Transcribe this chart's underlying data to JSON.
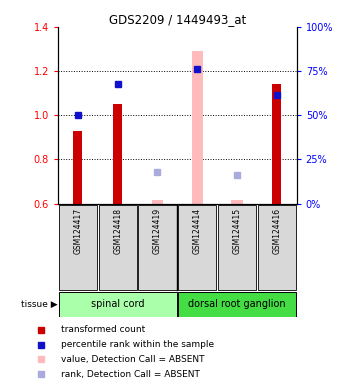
{
  "title": "GDS2209 / 1449493_at",
  "samples": [
    "GSM124417",
    "GSM124418",
    "GSM124419",
    "GSM124414",
    "GSM124415",
    "GSM124416"
  ],
  "x_positions": [
    0,
    1,
    2,
    3,
    4,
    5
  ],
  "red_bars": [
    0.93,
    1.05,
    null,
    null,
    null,
    1.14
  ],
  "blue_squares": [
    1.0,
    1.14,
    null,
    1.21,
    null,
    1.09
  ],
  "pink_bars": [
    null,
    null,
    0.615,
    1.29,
    0.615,
    null
  ],
  "lavender_squares": [
    null,
    null,
    0.745,
    null,
    0.73,
    null
  ],
  "ylim": [
    0.6,
    1.4
  ],
  "yticks_left": [
    0.6,
    0.8,
    1.0,
    1.2,
    1.4
  ],
  "yticks_right": [
    0,
    25,
    50,
    75,
    100
  ],
  "tissue_groups": [
    {
      "label": "spinal cord",
      "spans": [
        0,
        1,
        2
      ],
      "color": "#aaffaa"
    },
    {
      "label": "dorsal root ganglion",
      "spans": [
        3,
        4,
        5
      ],
      "color": "#44dd44"
    }
  ],
  "bar_width": 0.22,
  "pink_bar_width": 0.28,
  "red_color": "#cc0000",
  "blue_color": "#1111cc",
  "pink_color": "#ffbbbb",
  "lavender_color": "#aaaadd",
  "sample_box_color": "#d8d8d8",
  "legend_items": [
    {
      "color": "#cc0000",
      "label": "transformed count"
    },
    {
      "color": "#1111cc",
      "label": "percentile rank within the sample"
    },
    {
      "color": "#ffbbbb",
      "label": "value, Detection Call = ABSENT"
    },
    {
      "color": "#aaaadd",
      "label": "rank, Detection Call = ABSENT"
    }
  ]
}
